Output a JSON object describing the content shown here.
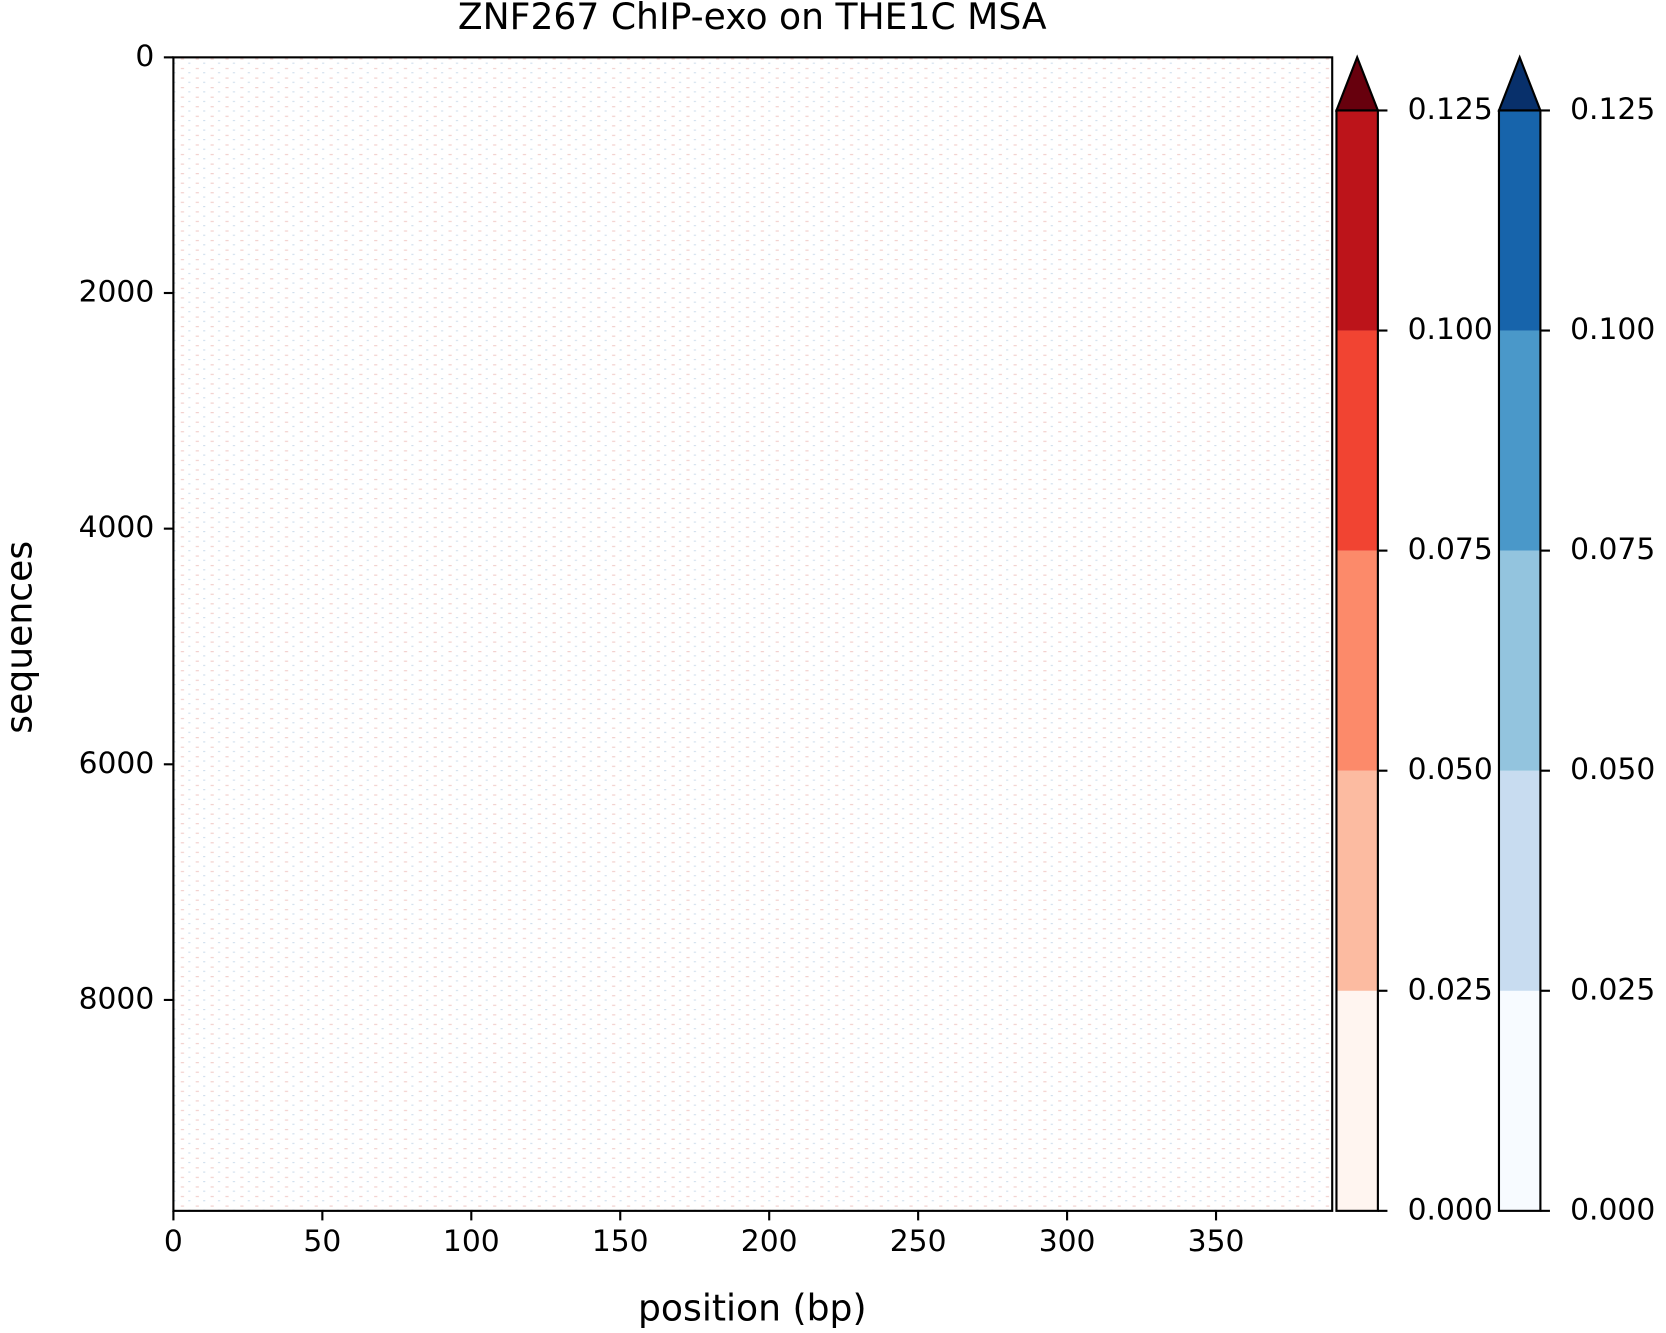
{
  "chart_data": {
    "type": "heatmap",
    "title": "ZNF267 ChIP-exo on THE1C MSA",
    "xlabel": "position (bp)",
    "ylabel": "sequences",
    "xlim": [
      0,
      389
    ],
    "xticks": [
      0,
      50,
      100,
      150,
      200,
      250,
      300,
      350
    ],
    "ylim": [
      9790,
      0
    ],
    "yticks": [
      0,
      2000,
      4000,
      6000,
      8000
    ],
    "colorbars": [
      {
        "lim": [
          0,
          0.125
        ],
        "colors": [
          "#fff5f0",
          "#fcbba1",
          "#fc8a6a",
          "#f14432",
          "#bc141a"
        ],
        "extend_color": "#67000d",
        "ticks": [
          {
            "value": 0,
            "label": "0.000"
          },
          {
            "value": 0.025,
            "label": "0.025"
          },
          {
            "value": 0.05,
            "label": "0.050"
          },
          {
            "value": 0.075,
            "label": "0.075"
          },
          {
            "value": 0.1,
            "label": "0.100"
          },
          {
            "value": 0.125,
            "label": "0.125"
          }
        ]
      },
      {
        "lim": [
          0,
          0.125
        ],
        "colors": [
          "#f7fbff",
          "#c8dcf0",
          "#93c4de",
          "#4a98c9",
          "#1764ab"
        ],
        "extend_color": "#08306b",
        "ticks": [
          {
            "value": 0,
            "label": "0.000"
          },
          {
            "value": 0.025,
            "label": "0.025"
          },
          {
            "value": 0.05,
            "label": "0.050"
          },
          {
            "value": 0.075,
            "label": "0.075"
          },
          {
            "value": 0.1,
            "label": "0.100"
          },
          {
            "value": 0.125,
            "label": "0.125"
          }
        ]
      }
    ]
  }
}
